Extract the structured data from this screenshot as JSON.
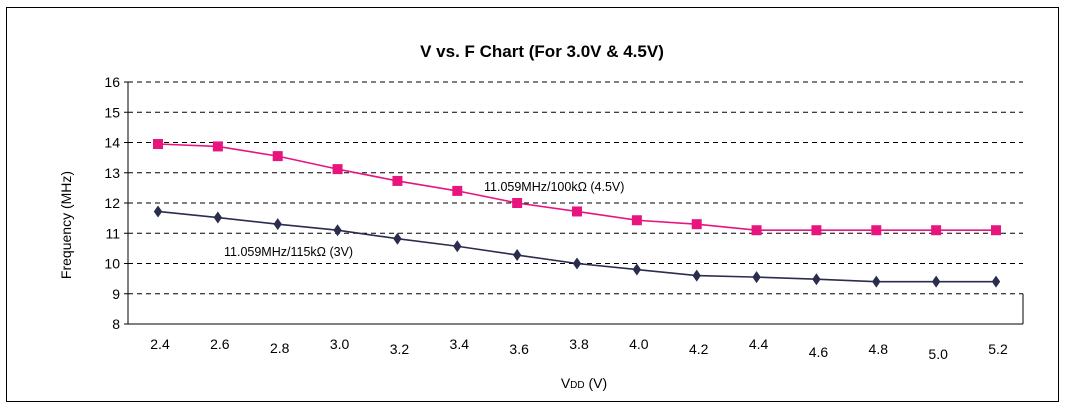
{
  "chart_data": {
    "type": "line",
    "title": "V vs. F Chart (For 3.0V & 4.5V)",
    "ylabel": "Frequency (MHz)",
    "xlabel_main": "V",
    "xlabel_sub": "DD",
    "xlabel_unit": " (V)",
    "ylim": [
      8,
      16
    ],
    "yticks": [
      "8",
      "9",
      "10",
      "11",
      "12",
      "13",
      "14",
      "15",
      "16"
    ],
    "categories": [
      "2.4",
      "2.6",
      "2.8",
      "3.0",
      "3.2",
      "3.4",
      "3.6",
      "3.8",
      "4.0",
      "4.2",
      "4.4",
      "4.6",
      "4.8",
      "5.0",
      "5.2"
    ],
    "grid": "horizontal dashed",
    "series": [
      {
        "name": "11.059MHz/100kΩ (4.5V)",
        "color": "#e8157f",
        "marker": "square",
        "values": [
          13.95,
          13.87,
          13.55,
          13.12,
          12.73,
          12.4,
          12.0,
          11.72,
          11.43,
          11.3,
          11.1,
          11.1,
          11.1,
          11.1,
          11.1
        ]
      },
      {
        "name": "11.059MHz/115kΩ (3V)",
        "color": "#2a2d4e",
        "marker": "diamond",
        "values": [
          11.72,
          11.52,
          11.3,
          11.1,
          10.82,
          10.57,
          10.28,
          10.0,
          9.8,
          9.6,
          9.55,
          9.48,
          9.4,
          9.4,
          9.4
        ]
      }
    ]
  }
}
